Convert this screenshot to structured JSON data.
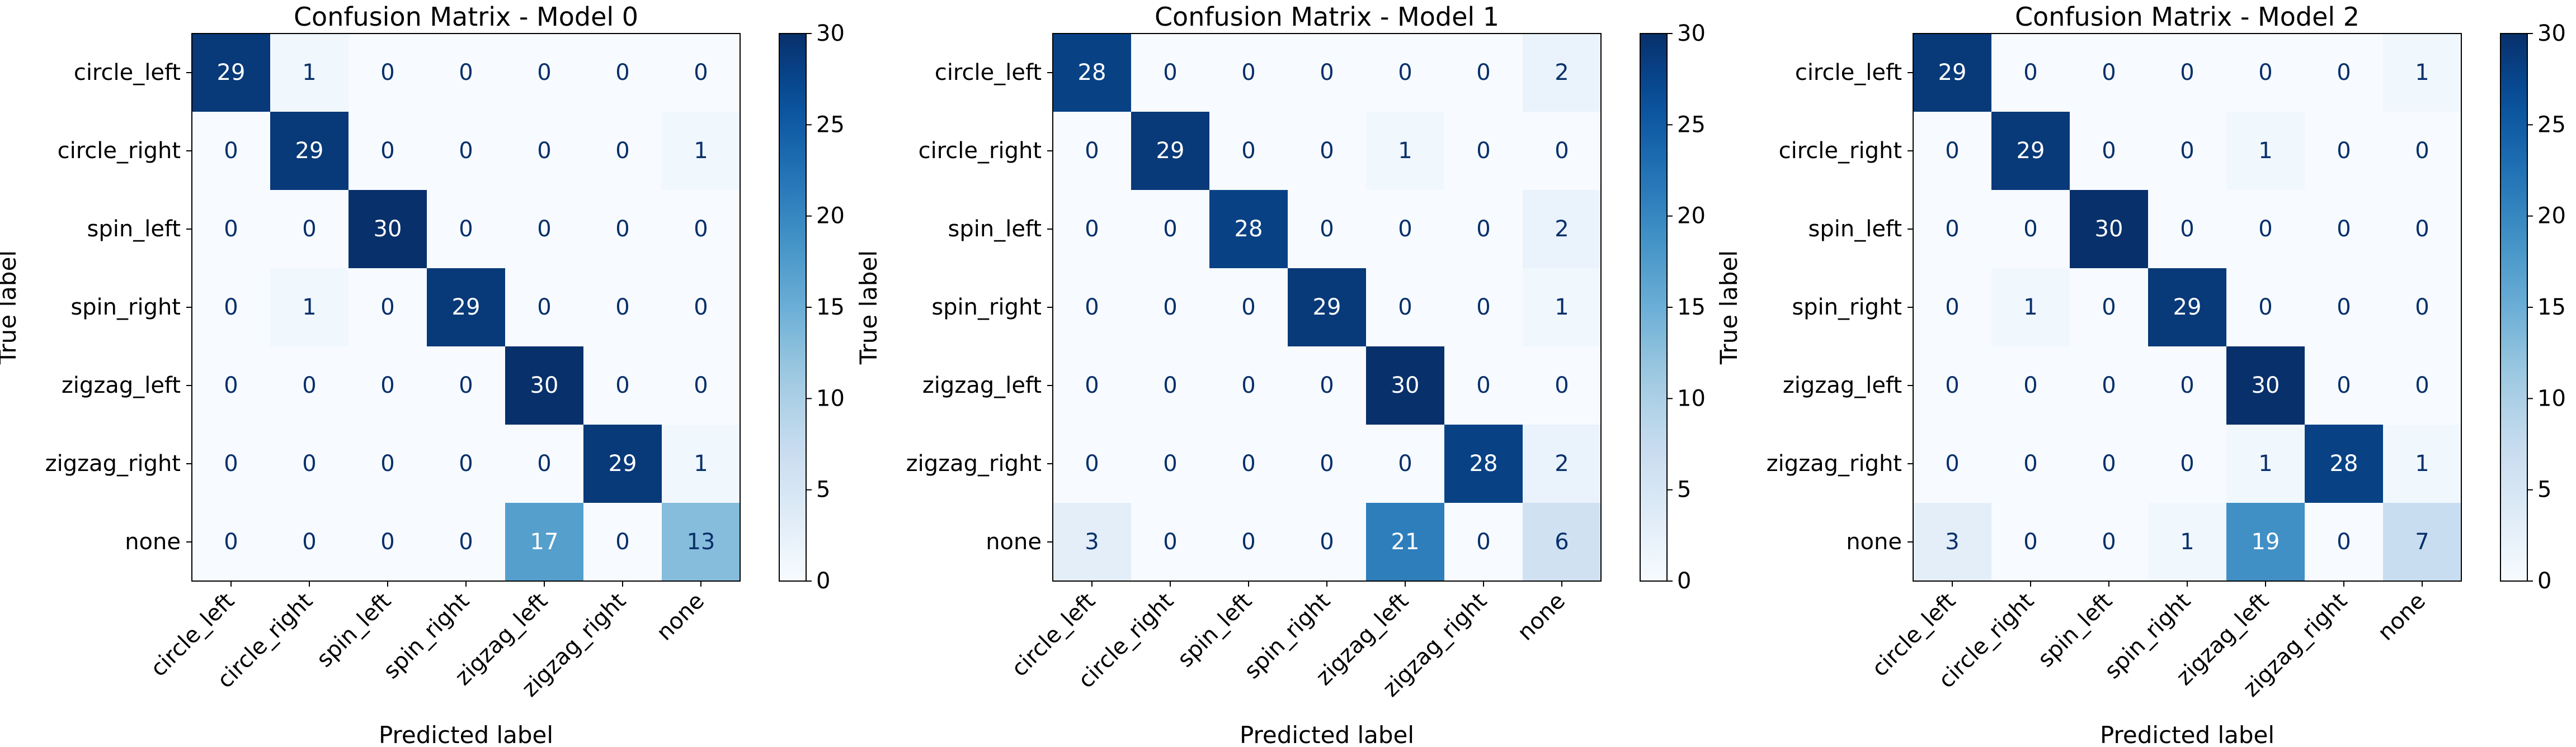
{
  "chart_data": [
    {
      "type": "heatmap",
      "title": "Confusion Matrix - Model 0",
      "xlabel": "Predicted label",
      "ylabel": "True label",
      "x_categories": [
        "circle_left",
        "circle_right",
        "spin_left",
        "spin_right",
        "zigzag_left",
        "zigzag_right",
        "none"
      ],
      "y_categories": [
        "circle_left",
        "circle_right",
        "spin_left",
        "spin_right",
        "zigzag_left",
        "zigzag_right",
        "none"
      ],
      "values": [
        [
          29,
          1,
          0,
          0,
          0,
          0,
          0
        ],
        [
          0,
          29,
          0,
          0,
          0,
          0,
          1
        ],
        [
          0,
          0,
          30,
          0,
          0,
          0,
          0
        ],
        [
          0,
          1,
          0,
          29,
          0,
          0,
          0
        ],
        [
          0,
          0,
          0,
          0,
          30,
          0,
          0
        ],
        [
          0,
          0,
          0,
          0,
          0,
          29,
          1
        ],
        [
          0,
          0,
          0,
          0,
          17,
          0,
          13
        ]
      ],
      "colormap": "Blues",
      "vmin": 0,
      "vmax": 30,
      "colorbar_ticks": [
        0,
        5,
        10,
        15,
        20,
        25,
        30
      ]
    },
    {
      "type": "heatmap",
      "title": "Confusion Matrix - Model 1",
      "xlabel": "Predicted label",
      "ylabel": "True label",
      "x_categories": [
        "circle_left",
        "circle_right",
        "spin_left",
        "spin_right",
        "zigzag_left",
        "zigzag_right",
        "none"
      ],
      "y_categories": [
        "circle_left",
        "circle_right",
        "spin_left",
        "spin_right",
        "zigzag_left",
        "zigzag_right",
        "none"
      ],
      "values": [
        [
          28,
          0,
          0,
          0,
          0,
          0,
          2
        ],
        [
          0,
          29,
          0,
          0,
          1,
          0,
          0
        ],
        [
          0,
          0,
          28,
          0,
          0,
          0,
          2
        ],
        [
          0,
          0,
          0,
          29,
          0,
          0,
          1
        ],
        [
          0,
          0,
          0,
          0,
          30,
          0,
          0
        ],
        [
          0,
          0,
          0,
          0,
          0,
          28,
          2
        ],
        [
          3,
          0,
          0,
          0,
          21,
          0,
          6
        ]
      ],
      "colormap": "Blues",
      "vmin": 0,
      "vmax": 30,
      "colorbar_ticks": [
        0,
        5,
        10,
        15,
        20,
        25,
        30
      ]
    },
    {
      "type": "heatmap",
      "title": "Confusion Matrix - Model 2",
      "xlabel": "Predicted label",
      "ylabel": "True label",
      "x_categories": [
        "circle_left",
        "circle_right",
        "spin_left",
        "spin_right",
        "zigzag_left",
        "zigzag_right",
        "none"
      ],
      "y_categories": [
        "circle_left",
        "circle_right",
        "spin_left",
        "spin_right",
        "zigzag_left",
        "zigzag_right",
        "none"
      ],
      "values": [
        [
          29,
          0,
          0,
          0,
          0,
          0,
          1
        ],
        [
          0,
          29,
          0,
          0,
          1,
          0,
          0
        ],
        [
          0,
          0,
          30,
          0,
          0,
          0,
          0
        ],
        [
          0,
          1,
          0,
          29,
          0,
          0,
          0
        ],
        [
          0,
          0,
          0,
          0,
          30,
          0,
          0
        ],
        [
          0,
          0,
          0,
          0,
          1,
          28,
          1
        ],
        [
          3,
          0,
          0,
          1,
          19,
          0,
          7
        ]
      ],
      "colormap": "Blues",
      "vmin": 0,
      "vmax": 30,
      "colorbar_ticks": [
        0,
        5,
        10,
        15,
        20,
        25,
        30
      ]
    }
  ]
}
